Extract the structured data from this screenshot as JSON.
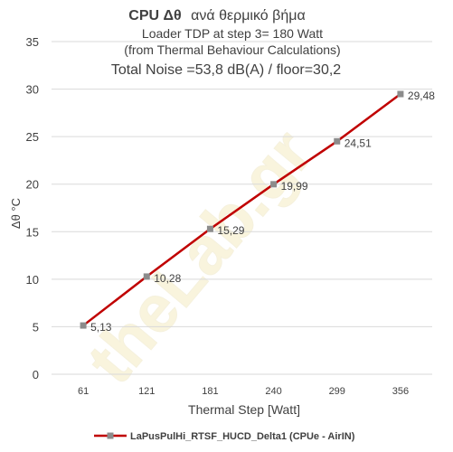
{
  "chart_data": {
    "type": "line",
    "title": "CPU  Δθ",
    "title_suffix": "ανά θερμικό βήμα",
    "subtitle_lines": [
      "Loader TDP at step 3= 180 Watt",
      "(from Thermal Behaviour Calculations)"
    ],
    "noise_line": "Total Noise =53,8 dB(A) / floor=30,2",
    "xlabel": "Thermal Step [Watt]",
    "ylabel": "Δθ °C",
    "categories": [
      "61",
      "121",
      "181",
      "240",
      "299",
      "356"
    ],
    "ylim": [
      0,
      35
    ],
    "yticks": [
      "0",
      "5",
      "10",
      "15",
      "20",
      "25",
      "30",
      "35"
    ],
    "grid": true,
    "legend_position": "bottom",
    "series": [
      {
        "name": "LaPusPulHi_RTSF_HUCD_Delta1 (CPUe - AirIN)",
        "values": [
          5.13,
          10.28,
          15.29,
          19.99,
          24.51,
          29.48
        ],
        "labels": [
          "5,13",
          "10,28",
          "15,29",
          "19,99",
          "24,51",
          "29,48"
        ],
        "color": "#c00000",
        "marker_color": "#8c8c8c"
      }
    ],
    "watermark": "theLab.gr"
  }
}
